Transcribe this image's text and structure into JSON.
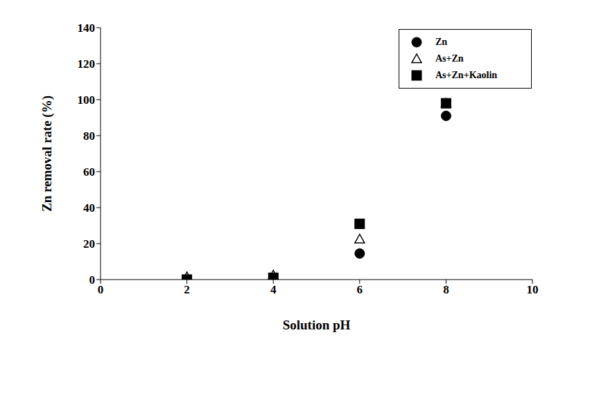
{
  "chart_data": {
    "type": "scatter",
    "x_label": "Solution pH",
    "y_label": "Zn removal rate (%)",
    "x": [
      2,
      4,
      6,
      8
    ],
    "series": [
      {
        "name": "Zn",
        "color": "#000000",
        "marker": "circle",
        "values": [
          0,
          0,
          14.5,
          91
        ]
      },
      {
        "name": "As+Zn",
        "color": "#000000",
        "marker": "triangle-open",
        "values": [
          1.5,
          2.5,
          22.5,
          98
        ]
      },
      {
        "name": "As+Zn+Kaolin",
        "color": "#000000",
        "marker": "square",
        "values": [
          0,
          1,
          31,
          98
        ]
      }
    ],
    "xlim": [
      0,
      10
    ],
    "xticks": [
      0,
      2,
      4,
      6,
      8,
      10
    ],
    "ylim": [
      0,
      140
    ],
    "yticks": [
      0,
      20,
      40,
      60,
      80,
      100,
      120,
      140
    ],
    "grid": false,
    "legend": "upper right"
  }
}
